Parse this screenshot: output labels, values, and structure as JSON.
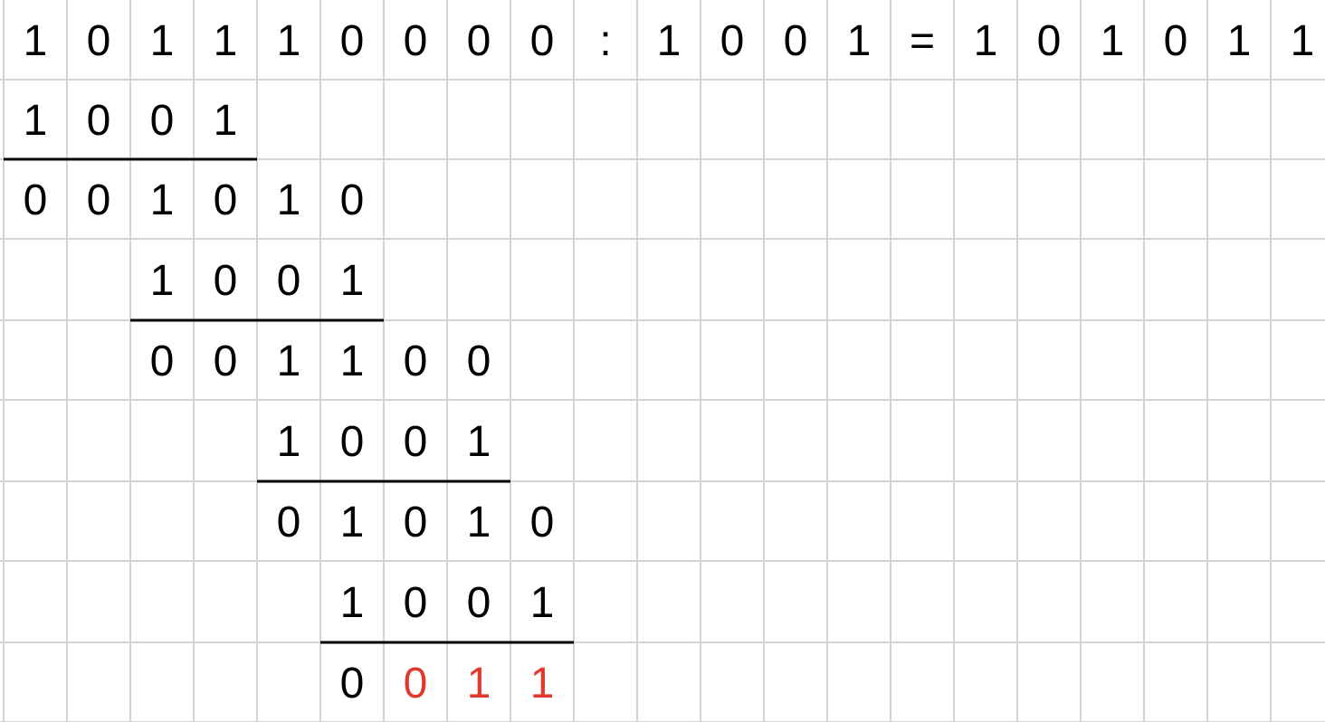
{
  "colors": {
    "text": "#000000",
    "highlight": "#e03a2e",
    "gridline": "#d4d4d4",
    "rule": "#000000"
  },
  "rows": [
    {
      "cells": [
        {
          "col": 0,
          "text": "1"
        },
        {
          "col": 1,
          "text": "0"
        },
        {
          "col": 2,
          "text": "1"
        },
        {
          "col": 3,
          "text": "1"
        },
        {
          "col": 4,
          "text": "1"
        },
        {
          "col": 5,
          "text": "0"
        },
        {
          "col": 6,
          "text": "0"
        },
        {
          "col": 7,
          "text": "0"
        },
        {
          "col": 8,
          "text": "0"
        },
        {
          "col": 9,
          "text": ":"
        },
        {
          "col": 10,
          "text": "1"
        },
        {
          "col": 11,
          "text": "0"
        },
        {
          "col": 12,
          "text": "0"
        },
        {
          "col": 13,
          "text": "1"
        },
        {
          "col": 14,
          "text": "="
        },
        {
          "col": 15,
          "text": "1"
        },
        {
          "col": 16,
          "text": "0"
        },
        {
          "col": 17,
          "text": "1"
        },
        {
          "col": 18,
          "text": "0"
        },
        {
          "col": 19,
          "text": "1"
        },
        {
          "col": 20,
          "text": "1"
        }
      ]
    },
    {
      "cells": [
        {
          "col": 0,
          "text": "1"
        },
        {
          "col": 1,
          "text": "0"
        },
        {
          "col": 2,
          "text": "0"
        },
        {
          "col": 3,
          "text": "1"
        }
      ]
    },
    {
      "cells": [
        {
          "col": 0,
          "text": "0"
        },
        {
          "col": 1,
          "text": "0"
        },
        {
          "col": 2,
          "text": "1"
        },
        {
          "col": 3,
          "text": "0"
        },
        {
          "col": 4,
          "text": "1"
        },
        {
          "col": 5,
          "text": "0"
        }
      ]
    },
    {
      "cells": [
        {
          "col": 2,
          "text": "1"
        },
        {
          "col": 3,
          "text": "0"
        },
        {
          "col": 4,
          "text": "0"
        },
        {
          "col": 5,
          "text": "1"
        }
      ]
    },
    {
      "cells": [
        {
          "col": 2,
          "text": "0"
        },
        {
          "col": 3,
          "text": "0"
        },
        {
          "col": 4,
          "text": "1"
        },
        {
          "col": 5,
          "text": "1"
        },
        {
          "col": 6,
          "text": "0"
        },
        {
          "col": 7,
          "text": "0"
        }
      ]
    },
    {
      "cells": [
        {
          "col": 4,
          "text": "1"
        },
        {
          "col": 5,
          "text": "0"
        },
        {
          "col": 6,
          "text": "0"
        },
        {
          "col": 7,
          "text": "1"
        }
      ]
    },
    {
      "cells": [
        {
          "col": 4,
          "text": "0"
        },
        {
          "col": 5,
          "text": "1"
        },
        {
          "col": 6,
          "text": "0"
        },
        {
          "col": 7,
          "text": "1"
        },
        {
          "col": 8,
          "text": "0"
        }
      ]
    },
    {
      "cells": [
        {
          "col": 5,
          "text": "1"
        },
        {
          "col": 6,
          "text": "0"
        },
        {
          "col": 7,
          "text": "0"
        },
        {
          "col": 8,
          "text": "1"
        }
      ]
    },
    {
      "cells": [
        {
          "col": 5,
          "text": "0"
        },
        {
          "col": 6,
          "text": "0",
          "highlight": true
        },
        {
          "col": 7,
          "text": "1",
          "highlight": true
        },
        {
          "col": 8,
          "text": "1",
          "highlight": true
        }
      ]
    }
  ],
  "underlines": [
    {
      "below_row": 1,
      "from_col": 0,
      "to_col": 3
    },
    {
      "below_row": 3,
      "from_col": 2,
      "to_col": 5
    },
    {
      "below_row": 5,
      "from_col": 4,
      "to_col": 7
    },
    {
      "below_row": 7,
      "from_col": 5,
      "to_col": 8
    }
  ]
}
